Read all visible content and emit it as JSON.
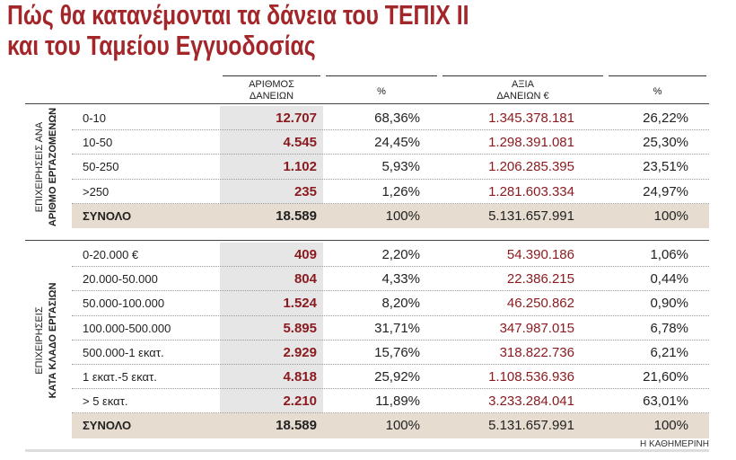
{
  "title": [
    "Πώς θα κατανέμονται τα δάνεια του ΤΕΠΙΧ ΙΙ",
    "και του Ταμείου Εγγυοδοσίας"
  ],
  "header": [
    [
      "ΑΡΙΘΜΟΣ",
      "ΔΑΝΕΙΩΝ"
    ],
    [
      "%"
    ],
    [
      "ΑΞΙΑ",
      "ΔΑΝΕΙΩΝ €"
    ],
    [
      "%"
    ]
  ],
  "sections": [
    {
      "side_label": [
        "ΕΠΙΧΕΙΡΗΣΕΙΣ ΑΝΑ",
        "ΑΡΙΘΜΟ ΕΡΓΑΖΟΜΕΝΩΝ"
      ],
      "rows": [
        [
          "0-10",
          "12.707",
          "68,36%",
          "1.345.378.181",
          "26,22%"
        ],
        [
          "10-50",
          "4.545",
          "24,45%",
          "1.298.391.081",
          "25,30%"
        ],
        [
          "50-250",
          "1.102",
          "5,93%",
          "1.206.285.395",
          "23,51%"
        ],
        [
          ">250",
          "235",
          "1,26%",
          "1.281.603.334",
          "24,97%"
        ]
      ],
      "total": [
        "ΣΥΝΟΛΟ",
        "18.589",
        "100%",
        "5.131.657.991",
        "100%"
      ]
    },
    {
      "side_label": [
        "ΕΠΙΧΕΙΡΗΣΕΙΣ",
        "ΚΑΤΑ ΚΛΑΔΟ ΕΡΓΑΣΙΩΝ"
      ],
      "rows": [
        [
          "0-20.000 €",
          "409",
          "2,20%",
          "54.390.186",
          "1,06%"
        ],
        [
          "20.000-50.000",
          "804",
          "4,33%",
          "22.386.215",
          "0,44%"
        ],
        [
          "50.000-100.000",
          "1.524",
          "8,20%",
          "46.250.862",
          "0,90%"
        ],
        [
          "100.000-500.000",
          "5.895",
          "31,71%",
          "347.987.015",
          "6,78%"
        ],
        [
          "500.000-1 εκατ.",
          "2.929",
          "15,76%",
          "318.822.736",
          "6,21%"
        ],
        [
          "1 εκατ.-5 εκατ.",
          "4.818",
          "25,92%",
          "1.108.536.936",
          "21,60%"
        ],
        [
          "> 5 εκατ.",
          "2.210",
          "11,89%",
          "3.233.284.041",
          "63,01%"
        ]
      ],
      "total": [
        "ΣΥΝΟΛΟ",
        "18.589",
        "100%",
        "5.131.657.991",
        "100%"
      ]
    }
  ],
  "source": "Η ΚΑΘΗΜΕΡΙΝΗ"
}
